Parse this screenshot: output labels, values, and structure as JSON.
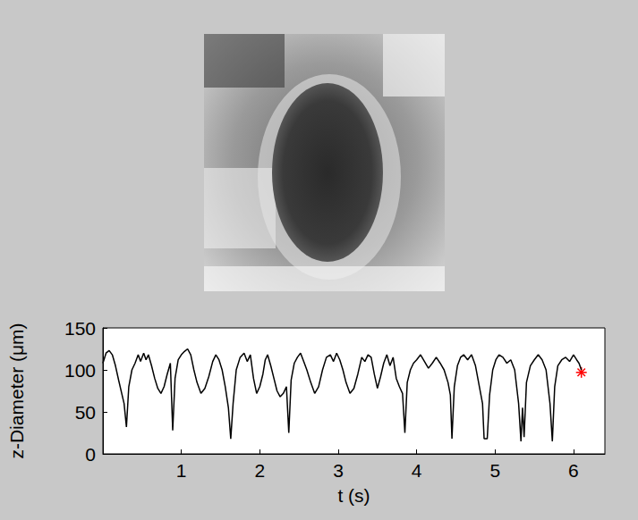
{
  "chart_data": {
    "type": "line",
    "x_label": "t (s)",
    "y_label": "z-Diameter (μm)",
    "color": "#000000",
    "line_style": "solid",
    "grid": false,
    "xlim": [
      0,
      6.4
    ],
    "xticks": [
      1,
      2,
      3,
      4,
      5,
      6
    ],
    "ylim": [
      0,
      150
    ],
    "yticks": [
      0,
      50,
      100,
      150
    ],
    "x": [
      0.0,
      0.04,
      0.08,
      0.12,
      0.16,
      0.2,
      0.24,
      0.27,
      0.3,
      0.33,
      0.37,
      0.41,
      0.45,
      0.48,
      0.52,
      0.55,
      0.58,
      0.62,
      0.66,
      0.7,
      0.74,
      0.78,
      0.82,
      0.86,
      0.89,
      0.92,
      0.96,
      1.0,
      1.04,
      1.08,
      1.12,
      1.16,
      1.2,
      1.25,
      1.3,
      1.35,
      1.4,
      1.44,
      1.48,
      1.52,
      1.56,
      1.6,
      1.63,
      1.66,
      1.7,
      1.75,
      1.8,
      1.84,
      1.88,
      1.92,
      1.96,
      2.0,
      2.04,
      2.07,
      2.1,
      2.14,
      2.18,
      2.22,
      2.26,
      2.3,
      2.34,
      2.37,
      2.4,
      2.44,
      2.48,
      2.52,
      2.56,
      2.6,
      2.65,
      2.7,
      2.75,
      2.8,
      2.85,
      2.9,
      2.94,
      2.98,
      3.02,
      3.06,
      3.1,
      3.15,
      3.2,
      3.25,
      3.3,
      3.34,
      3.38,
      3.42,
      3.46,
      3.5,
      3.54,
      3.58,
      3.62,
      3.66,
      3.7,
      3.74,
      3.78,
      3.82,
      3.85,
      3.88,
      3.92,
      3.96,
      4.0,
      4.05,
      4.1,
      4.15,
      4.2,
      4.25,
      4.3,
      4.35,
      4.4,
      4.43,
      4.45,
      4.48,
      4.52,
      4.56,
      4.6,
      4.65,
      4.7,
      4.75,
      4.8,
      4.84,
      4.86,
      4.9,
      4.93,
      4.97,
      5.01,
      5.05,
      5.1,
      5.15,
      5.2,
      5.25,
      5.3,
      5.33,
      5.35,
      5.37,
      5.4,
      5.45,
      5.5,
      5.55,
      5.6,
      5.65,
      5.7,
      5.73,
      5.76,
      5.8,
      5.85,
      5.9,
      5.95,
      6.0,
      6.04,
      6.07,
      6.1
    ],
    "values": [
      108,
      120,
      123,
      118,
      105,
      88,
      72,
      60,
      32,
      80,
      100,
      108,
      118,
      110,
      120,
      112,
      118,
      105,
      90,
      78,
      72,
      80,
      95,
      108,
      28,
      90,
      112,
      118,
      122,
      125,
      118,
      100,
      85,
      72,
      78,
      92,
      110,
      118,
      112,
      100,
      80,
      55,
      18,
      60,
      100,
      115,
      120,
      110,
      118,
      90,
      72,
      80,
      95,
      112,
      118,
      105,
      90,
      75,
      68,
      72,
      80,
      25,
      88,
      108,
      115,
      120,
      110,
      100,
      85,
      72,
      80,
      100,
      115,
      118,
      110,
      120,
      112,
      100,
      85,
      72,
      78,
      95,
      115,
      110,
      118,
      115,
      95,
      78,
      92,
      108,
      118,
      105,
      115,
      90,
      80,
      72,
      25,
      85,
      100,
      108,
      112,
      118,
      110,
      102,
      108,
      115,
      108,
      100,
      85,
      70,
      18,
      80,
      105,
      115,
      118,
      112,
      118,
      105,
      80,
      60,
      18,
      18,
      70,
      100,
      112,
      118,
      115,
      108,
      112,
      100,
      60,
      15,
      55,
      20,
      85,
      105,
      112,
      118,
      112,
      100,
      60,
      15,
      80,
      105,
      112,
      115,
      110,
      118,
      112,
      108,
      100
    ],
    "marker_point": {
      "x": 6.1,
      "y": 97,
      "color": "#ff0000",
      "marker": "asterisk"
    }
  }
}
